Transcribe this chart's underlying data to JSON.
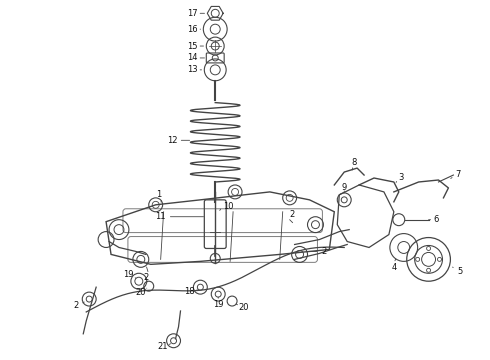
{
  "bg_color": "#ffffff",
  "line_color": "#444444",
  "label_color": "#111111",
  "fig_width": 4.9,
  "fig_height": 3.6,
  "dpi": 100
}
